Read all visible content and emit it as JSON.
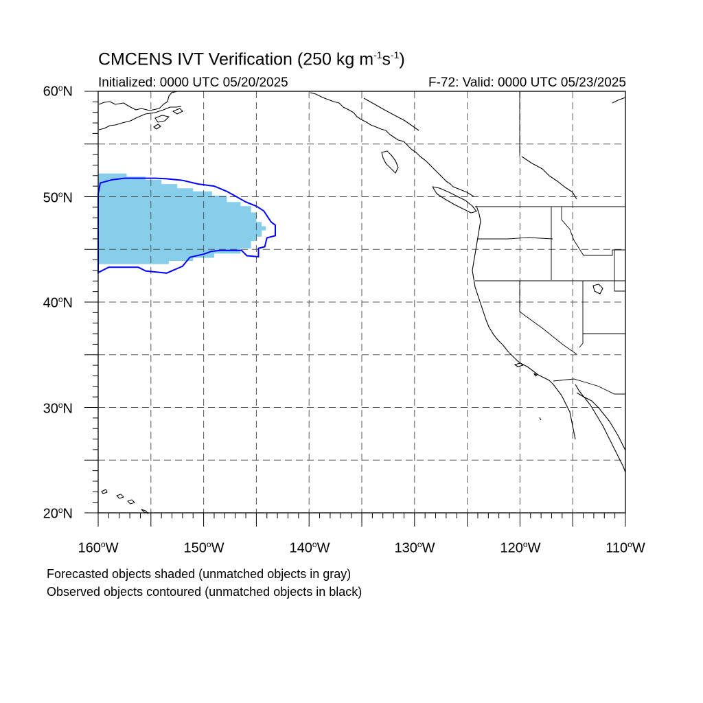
{
  "title_main": "CMCENS IVT Verification (250 kg m",
  "title_exp1": "-1",
  "title_mid": "s",
  "title_exp2": "-1",
  "title_end": ")",
  "init_label": "Initialized: 0000 UTC 05/20/2025",
  "valid_label": "F-72: Valid: 0000 UTC 05/23/2025",
  "degree_symbol": "o",
  "lat_labels": [
    {
      "value": "60",
      "hemi": "N"
    },
    {
      "value": "50",
      "hemi": "N"
    },
    {
      "value": "40",
      "hemi": "N"
    },
    {
      "value": "30",
      "hemi": "N"
    },
    {
      "value": "20",
      "hemi": "N"
    }
  ],
  "lon_labels": [
    {
      "value": "160",
      "hemi": "W"
    },
    {
      "value": "150",
      "hemi": "W"
    },
    {
      "value": "140",
      "hemi": "W"
    },
    {
      "value": "130",
      "hemi": "W"
    },
    {
      "value": "120",
      "hemi": "W"
    },
    {
      "value": "110",
      "hemi": "W"
    }
  ],
  "footnote_forecast": "Forecasted objects shaded (unmatched objects in gray)",
  "footnote_observed": "Observed objects contoured (unmatched objects in black)",
  "map_extent": {
    "lon": [
      -160,
      -110
    ],
    "lat": [
      20,
      60
    ],
    "grid_step_deg": 5
  },
  "colors": {
    "forecast_fill": "#87ceeb",
    "observed_contour": "#0000ff",
    "coastline": "#000000",
    "grid": "#555555"
  },
  "forecast_object": {
    "matched": true,
    "outline_lonlat": [
      [
        -160,
        52.2
      ],
      [
        -157.3,
        52.2
      ],
      [
        -157.3,
        51.9
      ],
      [
        -155.5,
        51.9
      ],
      [
        -155.5,
        51.6
      ],
      [
        -154,
        51.6
      ],
      [
        -154,
        51.2
      ],
      [
        -152.5,
        51.2
      ],
      [
        -152.5,
        50.8
      ],
      [
        -151,
        50.8
      ],
      [
        -151,
        50.5
      ],
      [
        -149.2,
        50.5
      ],
      [
        -149.2,
        50.1
      ],
      [
        -147.8,
        50.1
      ],
      [
        -147.8,
        49.5
      ],
      [
        -146.5,
        49.5
      ],
      [
        -146.5,
        49.1
      ],
      [
        -145.5,
        49.1
      ],
      [
        -145.5,
        48.5
      ],
      [
        -145,
        48.5
      ],
      [
        -145,
        47.6
      ],
      [
        -144.5,
        47.6
      ],
      [
        -144.5,
        47.2
      ],
      [
        -144.1,
        47.2
      ],
      [
        -144.1,
        46.8
      ],
      [
        -144.5,
        46.8
      ],
      [
        -144.5,
        46.2
      ],
      [
        -145,
        46.2
      ],
      [
        -145,
        45.8
      ],
      [
        -145.5,
        45.8
      ],
      [
        -145.5,
        45.1
      ],
      [
        -146.5,
        45.1
      ],
      [
        -146.5,
        44.6
      ],
      [
        -149,
        44.6
      ],
      [
        -149,
        44.2
      ],
      [
        -151,
        44.2
      ],
      [
        -151,
        43.9
      ],
      [
        -153.3,
        43.9
      ],
      [
        -153.3,
        43.6
      ],
      [
        -160,
        43.6
      ]
    ]
  },
  "observed_object": {
    "matched": true,
    "outline_lonlat": [
      [
        -160,
        50.3
      ],
      [
        -159.8,
        51.3
      ],
      [
        -158.7,
        51.6
      ],
      [
        -157.5,
        51.75
      ],
      [
        -154.5,
        51.75
      ],
      [
        -153.5,
        51.7
      ],
      [
        -152,
        51.55
      ],
      [
        -150.5,
        51.2
      ],
      [
        -149,
        51
      ],
      [
        -147.8,
        50.5
      ],
      [
        -146.8,
        49.95
      ],
      [
        -146,
        49.5
      ],
      [
        -145,
        49.1
      ],
      [
        -144.3,
        48.65
      ],
      [
        -143.6,
        47.6
      ],
      [
        -143.2,
        47.3
      ],
      [
        -143.2,
        46.3
      ],
      [
        -144,
        46.1
      ],
      [
        -144.2,
        45.25
      ],
      [
        -144.8,
        45.1
      ],
      [
        -144.8,
        44.3
      ],
      [
        -145.9,
        44.4
      ],
      [
        -146.4,
        44.9
      ],
      [
        -148.5,
        44.9
      ],
      [
        -149.3,
        44.8
      ],
      [
        -150,
        44.55
      ],
      [
        -151.3,
        44.25
      ],
      [
        -152,
        43.4
      ],
      [
        -153.5,
        42.75
      ],
      [
        -155.5,
        42.95
      ],
      [
        -156.2,
        43.3
      ],
      [
        -159,
        43.3
      ],
      [
        -160,
        42.8
      ]
    ]
  }
}
